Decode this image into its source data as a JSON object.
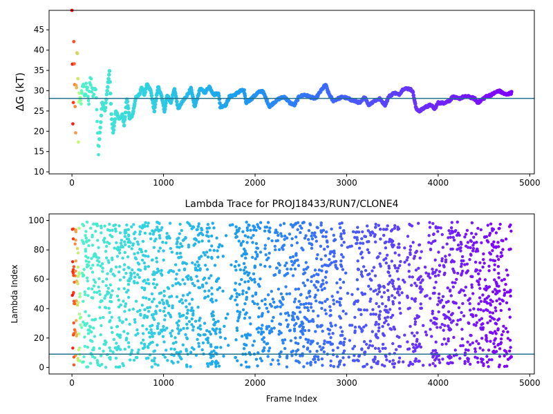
{
  "chart_data": [
    {
      "type": "scatter",
      "title": "",
      "xlabel": "",
      "ylabel": "ΔG (kT)",
      "xlim": [
        -250,
        5050
      ],
      "ylim": [
        9.5,
        49.8
      ],
      "xticks": [
        0,
        1000,
        2000,
        3000,
        4000,
        5000
      ],
      "yticks": [
        10,
        15,
        20,
        25,
        30,
        35,
        40,
        45
      ],
      "hline": 28.1,
      "colormap": [
        "#ff0000",
        "#ff8c3c",
        "#c0ff70",
        "#60ffc0",
        "#30d4e0",
        "#1aa0f0",
        "#3a6aff",
        "#6a30ff",
        "#8000ff"
      ],
      "series": [
        {
          "marker": "dot",
          "x_step": 5,
          "anchors": [
            [
              0,
              50.0
            ],
            [
              10,
              20.0
            ],
            [
              20,
              40.0
            ],
            [
              30,
              29.0
            ],
            [
              40,
              22.0
            ],
            [
              50,
              34.0
            ],
            [
              60,
              41.0
            ],
            [
              70,
              18.0
            ],
            [
              80,
              32.0
            ],
            [
              90,
              25.0
            ],
            [
              100,
              27.0
            ],
            [
              120,
              31.0
            ],
            [
              140,
              29.0
            ],
            [
              160,
              32.0
            ],
            [
              180,
              27.0
            ],
            [
              200,
              33.0
            ],
            [
              230,
              29.0
            ],
            [
              260,
              31.0
            ],
            [
              290,
              14.0
            ],
            [
              300,
              18.0
            ],
            [
              330,
              27.0
            ],
            [
              360,
              25.0
            ],
            [
              390,
              31.0
            ],
            [
              410,
              35.0
            ],
            [
              430,
              24.0
            ],
            [
              450,
              19.5
            ],
            [
              480,
              25.0
            ],
            [
              520,
              23.0
            ],
            [
              550,
              24.0
            ],
            [
              570,
              21.5
            ],
            [
              600,
              28.0
            ],
            [
              630,
              23.0
            ],
            [
              660,
              24.0
            ],
            [
              700,
              28.5
            ],
            [
              740,
              29.0
            ],
            [
              760,
              31.0
            ],
            [
              790,
              29.0
            ],
            [
              820,
              31.5
            ],
            [
              860,
              30.0
            ],
            [
              900,
              25.0
            ],
            [
              940,
              31.0
            ],
            [
              980,
              28.5
            ],
            [
              1010,
              25.0
            ],
            [
              1040,
              29.0
            ],
            [
              1080,
              27.0
            ],
            [
              1120,
              30.5
            ],
            [
              1160,
              25.5
            ],
            [
              1200,
              27.0
            ],
            [
              1260,
              29.0
            ],
            [
              1300,
              30.5
            ],
            [
              1340,
              26.0
            ],
            [
              1400,
              30.5
            ],
            [
              1450,
              29.5
            ],
            [
              1500,
              31.0
            ],
            [
              1550,
              29.0
            ],
            [
              1600,
              29.5
            ],
            [
              1620,
              26.0
            ],
            [
              1680,
              26.5
            ],
            [
              1720,
              28.5
            ],
            [
              1780,
              29.0
            ],
            [
              1840,
              30.0
            ],
            [
              1880,
              30.0
            ],
            [
              1900,
              27.0
            ],
            [
              1960,
              28.0
            ],
            [
              2030,
              29.5
            ],
            [
              2080,
              30.0
            ],
            [
              2120,
              28.0
            ],
            [
              2160,
              26.0
            ],
            [
              2200,
              27.0
            ],
            [
              2260,
              28.0
            ],
            [
              2320,
              28.5
            ],
            [
              2380,
              27.0
            ],
            [
              2430,
              26.5
            ],
            [
              2480,
              28.5
            ],
            [
              2540,
              29.0
            ],
            [
              2600,
              28.5
            ],
            [
              2660,
              28.0
            ],
            [
              2720,
              30.0
            ],
            [
              2770,
              31.5
            ],
            [
              2800,
              29.5
            ],
            [
              2850,
              27.5
            ],
            [
              2900,
              28.0
            ],
            [
              2960,
              28.5
            ],
            [
              3020,
              28.0
            ],
            [
              3080,
              27.5
            ],
            [
              3150,
              27.0
            ],
            [
              3200,
              28.5
            ],
            [
              3240,
              26.5
            ],
            [
              3300,
              27.5
            ],
            [
              3360,
              28.0
            ],
            [
              3420,
              26.5
            ],
            [
              3460,
              28.5
            ],
            [
              3520,
              29.5
            ],
            [
              3570,
              29.0
            ],
            [
              3620,
              30.5
            ],
            [
              3680,
              30.5
            ],
            [
              3720,
              30.0
            ],
            [
              3760,
              25.5
            ],
            [
              3800,
              25.0
            ],
            [
              3860,
              26.0
            ],
            [
              3920,
              26.5
            ],
            [
              3960,
              25.5
            ],
            [
              4000,
              27.0
            ],
            [
              4060,
              27.0
            ],
            [
              4120,
              27.5
            ],
            [
              4160,
              28.5
            ],
            [
              4220,
              28.0
            ],
            [
              4280,
              28.5
            ],
            [
              4340,
              28.5
            ],
            [
              4400,
              28.0
            ],
            [
              4430,
              27.0
            ],
            [
              4460,
              27.5
            ],
            [
              4520,
              28.5
            ],
            [
              4580,
              29.0
            ],
            [
              4620,
              29.5
            ],
            [
              4660,
              30.0
            ],
            [
              4700,
              29.5
            ],
            [
              4740,
              29.0
            ],
            [
              4800,
              29.5
            ]
          ]
        }
      ]
    },
    {
      "type": "scatter",
      "title": "Lambda Trace for PROJ18433/RUN7/CLONE4",
      "xlabel": "Frame Index",
      "ylabel": "Lambda Index",
      "xlim": [
        -250,
        5050
      ],
      "ylim": [
        -4.5,
        104.5
      ],
      "xticks": [
        0,
        1000,
        2000,
        3000,
        4000,
        5000
      ],
      "yticks": [
        0,
        20,
        40,
        60,
        80,
        100
      ],
      "hline": 9,
      "colormap": [
        "#ff0000",
        "#ff8c3c",
        "#c0ff70",
        "#60ffc0",
        "#30d4e0",
        "#1aa0f0",
        "#3a6aff",
        "#6a30ff",
        "#8000ff"
      ],
      "series": [
        {
          "marker": "dot",
          "x_range": [
            0,
            4800
          ],
          "y_range": [
            0,
            99
          ],
          "n_points": 2400,
          "sparse_bands": [
            [
              1620,
              1780
            ],
            [
              2980,
              3080
            ],
            [
              3590,
              3660
            ],
            [
              3820,
              3900
            ]
          ]
        }
      ]
    }
  ]
}
